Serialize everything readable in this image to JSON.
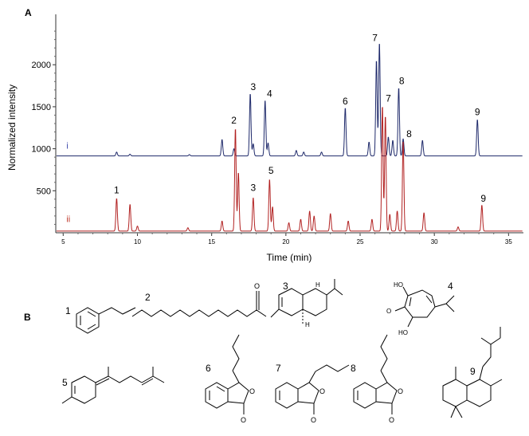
{
  "panels": {
    "a": "A",
    "b": "B"
  },
  "chart_data": {
    "type": "line",
    "xlabel": "Time (min)",
    "ylabel": "Normalized intensity",
    "xlim": [
      4.5,
      36
    ],
    "ylim": [
      0,
      2600
    ],
    "x_ticks": [
      5,
      10,
      15,
      20,
      25,
      30,
      35
    ],
    "y_ticks": [
      500,
      1000,
      1500,
      2000
    ],
    "grid": false,
    "series": [
      {
        "name": "i",
        "color": "#1f2a6b",
        "baseline": 915,
        "peaks": [
          {
            "x": 8.6,
            "y": 960
          },
          {
            "x": 9.5,
            "y": 935
          },
          {
            "x": 13.5,
            "y": 930
          },
          {
            "x": 15.7,
            "y": 1110
          },
          {
            "x": 16.5,
            "y": 1000
          },
          {
            "x": 17.6,
            "y": 1660
          },
          {
            "x": 17.8,
            "y": 1060
          },
          {
            "x": 18.6,
            "y": 1580
          },
          {
            "x": 18.8,
            "y": 1070
          },
          {
            "x": 20.7,
            "y": 980
          },
          {
            "x": 21.2,
            "y": 960
          },
          {
            "x": 22.4,
            "y": 960
          },
          {
            "x": 24.0,
            "y": 1490
          },
          {
            "x": 25.6,
            "y": 1080
          },
          {
            "x": 26.1,
            "y": 2060
          },
          {
            "x": 26.3,
            "y": 2270
          },
          {
            "x": 26.9,
            "y": 1140
          },
          {
            "x": 27.2,
            "y": 1100
          },
          {
            "x": 27.6,
            "y": 1730
          },
          {
            "x": 27.9,
            "y": 1120
          },
          {
            "x": 29.2,
            "y": 1100
          },
          {
            "x": 32.9,
            "y": 1350
          }
        ]
      },
      {
        "name": "ii",
        "color": "#b22222",
        "baseline": 20,
        "peaks": [
          {
            "x": 8.6,
            "y": 410
          },
          {
            "x": 9.5,
            "y": 340
          },
          {
            "x": 10.0,
            "y": 80
          },
          {
            "x": 13.4,
            "y": 60
          },
          {
            "x": 15.7,
            "y": 140
          },
          {
            "x": 16.6,
            "y": 1250
          },
          {
            "x": 16.8,
            "y": 720
          },
          {
            "x": 17.8,
            "y": 420
          },
          {
            "x": 18.9,
            "y": 640
          },
          {
            "x": 19.1,
            "y": 310
          },
          {
            "x": 20.2,
            "y": 120
          },
          {
            "x": 21.0,
            "y": 160
          },
          {
            "x": 21.6,
            "y": 260
          },
          {
            "x": 21.9,
            "y": 200
          },
          {
            "x": 23.0,
            "y": 230
          },
          {
            "x": 24.2,
            "y": 140
          },
          {
            "x": 25.8,
            "y": 160
          },
          {
            "x": 26.5,
            "y": 1520
          },
          {
            "x": 26.7,
            "y": 1400
          },
          {
            "x": 27.0,
            "y": 220
          },
          {
            "x": 27.5,
            "y": 260
          },
          {
            "x": 27.9,
            "y": 1100
          },
          {
            "x": 29.3,
            "y": 240
          },
          {
            "x": 31.6,
            "y": 70
          },
          {
            "x": 33.2,
            "y": 330
          }
        ]
      }
    ],
    "series_tags": [
      {
        "text": "i",
        "x": 5.0,
        "y": 1000,
        "color": "#3a44a8"
      },
      {
        "text": "ii",
        "x": 5.0,
        "y": 130,
        "color": "#c0392b"
      }
    ],
    "annotations": [
      {
        "text": "1",
        "x": 8.6,
        "y": 470
      },
      {
        "text": "2",
        "x": 16.5,
        "y": 1300
      },
      {
        "text": "3",
        "x": 17.8,
        "y": 1700
      },
      {
        "text": "3",
        "x": 17.8,
        "y": 500
      },
      {
        "text": "4",
        "x": 18.9,
        "y": 1620
      },
      {
        "text": "5",
        "x": 19.0,
        "y": 700
      },
      {
        "text": "6",
        "x": 24.0,
        "y": 1530
      },
      {
        "text": "7",
        "x": 26.0,
        "y": 2280
      },
      {
        "text": "7",
        "x": 26.9,
        "y": 1560
      },
      {
        "text": "8",
        "x": 27.8,
        "y": 1770
      },
      {
        "text": "8",
        "x": 28.3,
        "y": 1140
      },
      {
        "text": "9",
        "x": 32.9,
        "y": 1400
      },
      {
        "text": "9",
        "x": 33.3,
        "y": 370
      }
    ]
  },
  "structures": [
    {
      "number": "1"
    },
    {
      "number": "2"
    },
    {
      "number": "3"
    },
    {
      "number": "4",
      "atoms": [
        "HO",
        "O",
        "HO"
      ]
    },
    {
      "number": "5"
    },
    {
      "number": "6",
      "atoms": [
        "O",
        "O"
      ]
    },
    {
      "number": "7",
      "atoms": [
        "O",
        "O"
      ]
    },
    {
      "number": "8",
      "atoms": [
        "O",
        "O"
      ]
    },
    {
      "number": "9"
    },
    {
      "number": "",
      "atoms": [
        "O",
        "H",
        "H"
      ]
    }
  ]
}
